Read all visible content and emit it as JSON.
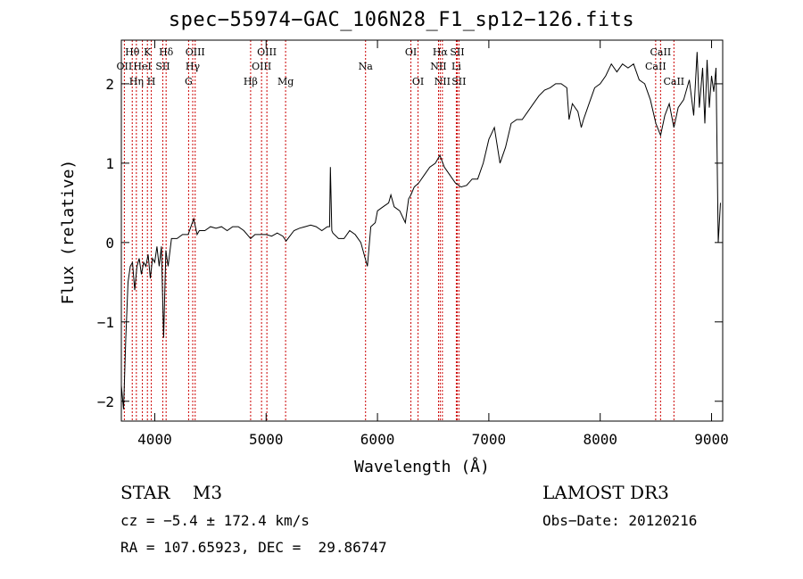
{
  "chart_data": {
    "type": "line",
    "title": "spec−55974−GAC_106N28_F1_sp12−126.fits",
    "xlabel": "Wavelength (Å)",
    "ylabel": "Flux (relative)",
    "xlim": [
      3700,
      9100
    ],
    "ylim": [
      -2.25,
      2.55
    ],
    "xticks": [
      {
        "value": 4000,
        "label": "4000"
      },
      {
        "value": 5000,
        "label": "5000"
      },
      {
        "value": 6000,
        "label": "6000"
      },
      {
        "value": 7000,
        "label": "7000"
      },
      {
        "value": 8000,
        "label": "8000"
      },
      {
        "value": 9000,
        "label": "9000"
      }
    ],
    "yticks": [
      {
        "value": -2,
        "label": "−2"
      },
      {
        "value": -1,
        "label": "−1"
      },
      {
        "value": 0,
        "label": "0"
      },
      {
        "value": 1,
        "label": "1"
      },
      {
        "value": 2,
        "label": "2"
      }
    ],
    "series": [
      {
        "name": "spectrum",
        "color": "#000000",
        "points": [
          [
            3700,
            -1.8
          ],
          [
            3720,
            -2.1
          ],
          [
            3740,
            -1.2
          ],
          [
            3760,
            -0.5
          ],
          [
            3780,
            -0.3
          ],
          [
            3800,
            -0.25
          ],
          [
            3820,
            -0.6
          ],
          [
            3840,
            -0.3
          ],
          [
            3860,
            -0.2
          ],
          [
            3880,
            -0.4
          ],
          [
            3900,
            -0.25
          ],
          [
            3920,
            -0.3
          ],
          [
            3940,
            -0.15
          ],
          [
            3960,
            -0.45
          ],
          [
            3980,
            -0.2
          ],
          [
            4000,
            -0.25
          ],
          [
            4020,
            -0.05
          ],
          [
            4040,
            -0.3
          ],
          [
            4060,
            -0.05
          ],
          [
            4080,
            -1.2
          ],
          [
            4100,
            -0.1
          ],
          [
            4120,
            -0.3
          ],
          [
            4150,
            0.05
          ],
          [
            4200,
            0.05
          ],
          [
            4250,
            0.1
          ],
          [
            4300,
            0.1
          ],
          [
            4350,
            0.3
          ],
          [
            4380,
            0.1
          ],
          [
            4400,
            0.15
          ],
          [
            4450,
            0.15
          ],
          [
            4500,
            0.2
          ],
          [
            4550,
            0.18
          ],
          [
            4600,
            0.2
          ],
          [
            4650,
            0.15
          ],
          [
            4700,
            0.2
          ],
          [
            4750,
            0.2
          ],
          [
            4800,
            0.15
          ],
          [
            4861,
            0.05
          ],
          [
            4900,
            0.1
          ],
          [
            4950,
            0.1
          ],
          [
            5000,
            0.1
          ],
          [
            5050,
            0.08
          ],
          [
            5100,
            0.12
          ],
          [
            5150,
            0.08
          ],
          [
            5180,
            0.02
          ],
          [
            5250,
            0.15
          ],
          [
            5300,
            0.18
          ],
          [
            5350,
            0.2
          ],
          [
            5400,
            0.22
          ],
          [
            5450,
            0.2
          ],
          [
            5500,
            0.15
          ],
          [
            5550,
            0.2
          ],
          [
            5570,
            0.2
          ],
          [
            5577,
            0.95
          ],
          [
            5590,
            0.15
          ],
          [
            5600,
            0.12
          ],
          [
            5650,
            0.05
          ],
          [
            5700,
            0.05
          ],
          [
            5750,
            0.15
          ],
          [
            5800,
            0.1
          ],
          [
            5850,
            0.0
          ],
          [
            5890,
            -0.2
          ],
          [
            5910,
            -0.3
          ],
          [
            5940,
            0.2
          ],
          [
            5980,
            0.25
          ],
          [
            6000,
            0.4
          ],
          [
            6050,
            0.45
          ],
          [
            6100,
            0.5
          ],
          [
            6120,
            0.6
          ],
          [
            6150,
            0.45
          ],
          [
            6200,
            0.4
          ],
          [
            6250,
            0.25
          ],
          [
            6280,
            0.55
          ],
          [
            6300,
            0.6
          ],
          [
            6330,
            0.7
          ],
          [
            6370,
            0.75
          ],
          [
            6420,
            0.85
          ],
          [
            6470,
            0.95
          ],
          [
            6520,
            1.0
          ],
          [
            6560,
            1.1
          ],
          [
            6600,
            0.95
          ],
          [
            6650,
            0.85
          ],
          [
            6700,
            0.75
          ],
          [
            6750,
            0.7
          ],
          [
            6800,
            0.72
          ],
          [
            6850,
            0.8
          ],
          [
            6900,
            0.8
          ],
          [
            6950,
            1.0
          ],
          [
            7000,
            1.3
          ],
          [
            7050,
            1.45
          ],
          [
            7100,
            1.0
          ],
          [
            7150,
            1.2
          ],
          [
            7200,
            1.5
          ],
          [
            7250,
            1.55
          ],
          [
            7300,
            1.55
          ],
          [
            7350,
            1.65
          ],
          [
            7400,
            1.75
          ],
          [
            7450,
            1.85
          ],
          [
            7500,
            1.92
          ],
          [
            7550,
            1.95
          ],
          [
            7600,
            2.0
          ],
          [
            7650,
            2.0
          ],
          [
            7700,
            1.95
          ],
          [
            7720,
            1.55
          ],
          [
            7750,
            1.75
          ],
          [
            7800,
            1.65
          ],
          [
            7830,
            1.45
          ],
          [
            7850,
            1.55
          ],
          [
            7900,
            1.75
          ],
          [
            7950,
            1.95
          ],
          [
            8000,
            2.0
          ],
          [
            8050,
            2.1
          ],
          [
            8100,
            2.25
          ],
          [
            8150,
            2.15
          ],
          [
            8200,
            2.25
          ],
          [
            8250,
            2.2
          ],
          [
            8300,
            2.25
          ],
          [
            8350,
            2.05
          ],
          [
            8400,
            2.0
          ],
          [
            8450,
            1.8
          ],
          [
            8500,
            1.5
          ],
          [
            8542,
            1.35
          ],
          [
            8580,
            1.6
          ],
          [
            8620,
            1.75
          ],
          [
            8662,
            1.45
          ],
          [
            8700,
            1.7
          ],
          [
            8750,
            1.8
          ],
          [
            8800,
            2.05
          ],
          [
            8840,
            1.6
          ],
          [
            8870,
            2.4
          ],
          [
            8890,
            1.7
          ],
          [
            8920,
            2.2
          ],
          [
            8940,
            1.5
          ],
          [
            8960,
            2.3
          ],
          [
            8980,
            1.7
          ],
          [
            9000,
            2.1
          ],
          [
            9020,
            1.9
          ],
          [
            9040,
            2.2
          ],
          [
            9060,
            0.0
          ],
          [
            9080,
            0.5
          ]
        ]
      }
    ],
    "lines": [
      {
        "label": "Hθ",
        "wavelength": 3798,
        "row": 1
      },
      {
        "label": "OII",
        "wavelength": 3727,
        "row": 2
      },
      {
        "label": "Hη",
        "wavelength": 3835,
        "row": 3
      },
      {
        "label": "K",
        "wavelength": 3934,
        "row": 1
      },
      {
        "label": "HeI",
        "wavelength": 3889,
        "row": 2
      },
      {
        "label": "H",
        "wavelength": 3969,
        "row": 3
      },
      {
        "label": "Hδ",
        "wavelength": 4102,
        "row": 1
      },
      {
        "label": "SII",
        "wavelength": 4072,
        "row": 2
      },
      {
        "label": "OIII",
        "wavelength": 4363,
        "row": 1
      },
      {
        "label": "Hγ",
        "wavelength": 4341,
        "row": 2
      },
      {
        "label": "G",
        "wavelength": 4304,
        "row": 3
      },
      {
        "label": "OIII",
        "wavelength": 5007,
        "row": 1
      },
      {
        "label": "OIII",
        "wavelength": 4959,
        "row": 2
      },
      {
        "label": "Hβ",
        "wavelength": 4861,
        "row": 3
      },
      {
        "label": "Mg",
        "wavelength": 5175,
        "row": 3
      },
      {
        "label": "Na",
        "wavelength": 5893,
        "row": 2
      },
      {
        "label": "OI",
        "wavelength": 6300,
        "row": 1
      },
      {
        "label": "OI",
        "wavelength": 6364,
        "row": 3
      },
      {
        "label": "Hα",
        "wavelength": 6563,
        "row": 1
      },
      {
        "label": "SII",
        "wavelength": 6716,
        "row": 1
      },
      {
        "label": "NII",
        "wavelength": 6548,
        "row": 2
      },
      {
        "label": "Li",
        "wavelength": 6708,
        "row": 2
      },
      {
        "label": "NII",
        "wavelength": 6583,
        "row": 3
      },
      {
        "label": "SII",
        "wavelength": 6731,
        "row": 3
      },
      {
        "label": "CaII",
        "wavelength": 8542,
        "row": 1
      },
      {
        "label": "CaII",
        "wavelength": 8498,
        "row": 2
      },
      {
        "label": "CaII",
        "wavelength": 8662,
        "row": 3
      }
    ],
    "line_color": "#cc0000"
  },
  "info": {
    "class_line": "STAR    M3",
    "survey": "LAMOST DR3",
    "cz": "cz = −5.4 ± 172.4 km/s",
    "obs_date": "Obs−Date: 20120216",
    "radec": "RA = 107.65923, DEC =  29.86747"
  }
}
